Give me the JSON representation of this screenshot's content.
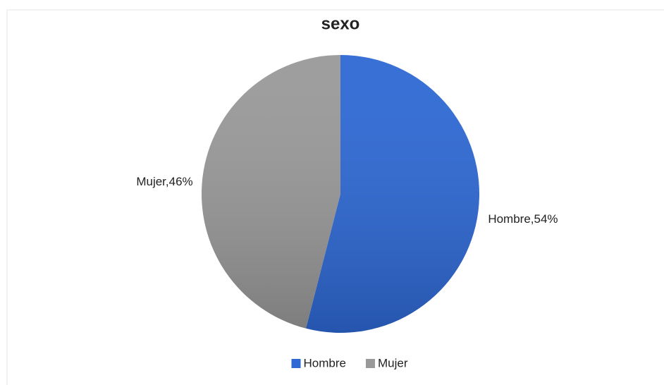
{
  "chart_data": {
    "type": "pie",
    "title": "sexo",
    "categories": [
      "Hombre",
      "Mujer"
    ],
    "values": [
      54,
      46
    ],
    "value_labels": [
      "Hombre,54%",
      "Mujer,46%"
    ],
    "colors": [
      "#2d68d4",
      "#999999"
    ],
    "legend": "bottom"
  }
}
